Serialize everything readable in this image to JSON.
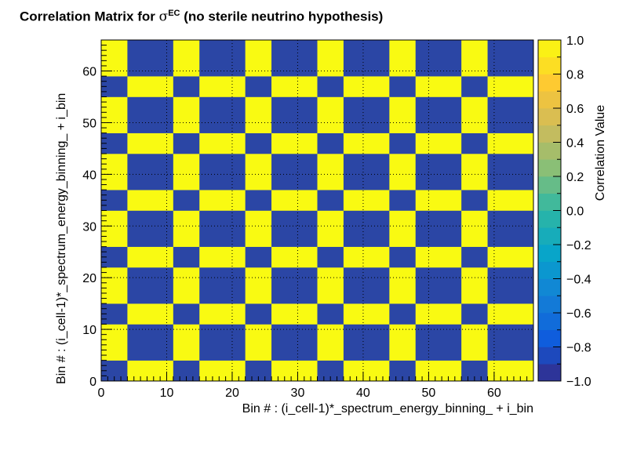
{
  "chart_data": {
    "type": "heatmap",
    "title": {
      "prefix": "Correlation Matrix for ",
      "symbol": "σ",
      "superscript": "EC",
      "suffix": " (no sterile neutrino hypothesis)"
    },
    "xlabel": "Bin # : (i_cell-1)*_spectrum_energy_binning_ + i_bin",
    "ylabel": "Bin # : (i_cell-1)*_spectrum_energy_binning_ + i_bin",
    "zlabel": "Correlation Value",
    "xlim": [
      0,
      66
    ],
    "ylim": [
      0,
      66
    ],
    "zlim": [
      -1,
      1
    ],
    "x_ticks": [
      "0",
      "10",
      "20",
      "30",
      "40",
      "50",
      "60"
    ],
    "y_ticks": [
      "0",
      "10",
      "20",
      "30",
      "40",
      "50",
      "60"
    ],
    "z_ticks": [
      "−1.0",
      "−0.8",
      "−0.6",
      "−0.4",
      "−0.2",
      "0.0",
      "0.2",
      "0.4",
      "0.6",
      "0.8",
      "1.0"
    ],
    "grid": true,
    "palette": "kBird",
    "x_block_edges": [
      0,
      4,
      11,
      15,
      22,
      26,
      33,
      37,
      44,
      48,
      55,
      59,
      66
    ],
    "y_block_edges": [
      0,
      4,
      11,
      15,
      22,
      26,
      33,
      37,
      44,
      48,
      55,
      59,
      66
    ],
    "value_high": 1.0,
    "value_low": -1.0,
    "colors": {
      "high": "#f9fa12",
      "low": "#2b46a5"
    }
  }
}
